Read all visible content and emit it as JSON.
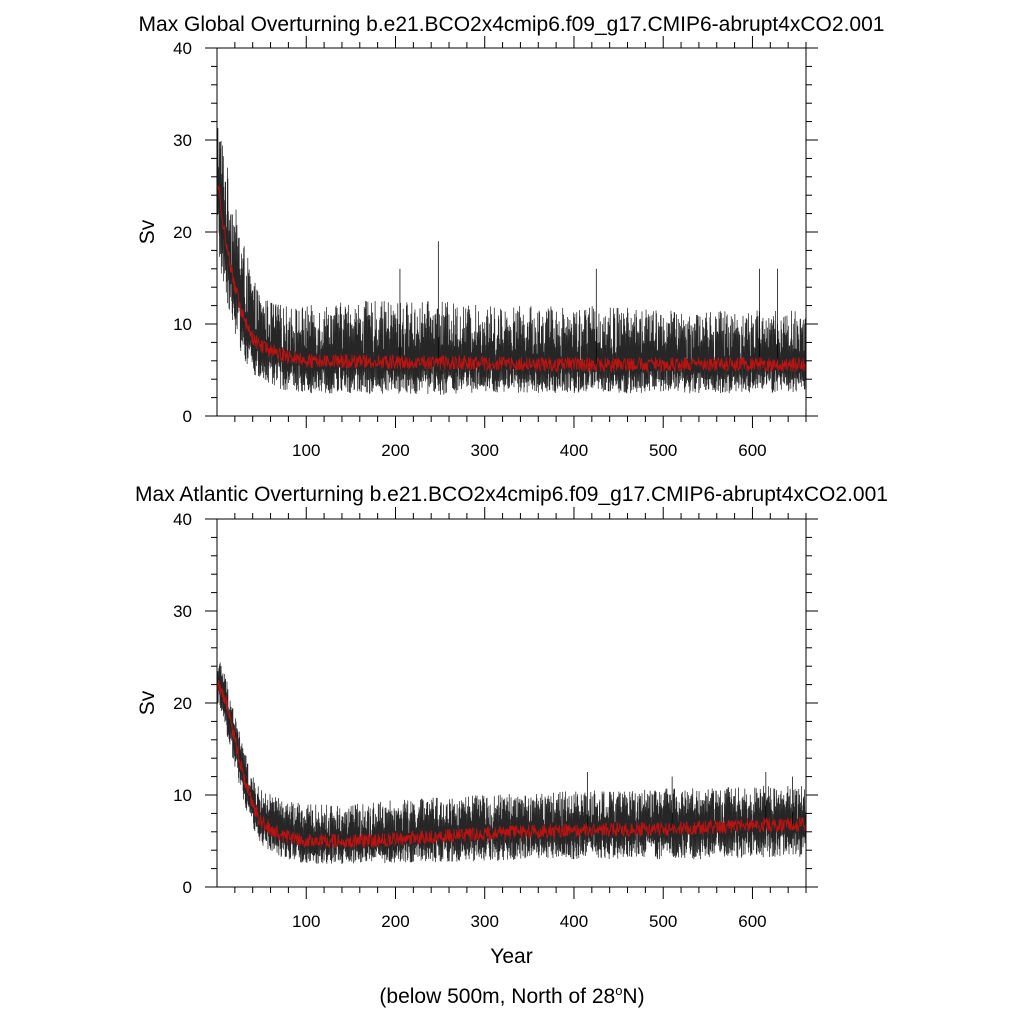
{
  "chart_data": [
    {
      "type": "line",
      "title": "Max Global Overturning b.e21.BCO2x4cmip6.f09_g17.CMIP6-abrupt4xCO2.001",
      "xlabel": "",
      "ylabel": "Sv",
      "xlim": [
        0,
        660
      ],
      "ylim": [
        0,
        40
      ],
      "x_ticks": [
        100,
        200,
        300,
        400,
        500,
        600
      ],
      "x_tick_labels": [
        "100",
        "200",
        "300",
        "400",
        "500",
        "600"
      ],
      "y_ticks": [
        0,
        10,
        20,
        30,
        40
      ],
      "y_tick_labels": [
        "0",
        "10",
        "20",
        "30",
        "40"
      ],
      "series": [
        {
          "name": "spread",
          "color": "#000000",
          "x": [
            0,
            5,
            10,
            20,
            30,
            40,
            50,
            75,
            100,
            150,
            200,
            250,
            300,
            350,
            400,
            450,
            500,
            550,
            600,
            660
          ],
          "low": [
            17,
            15,
            13,
            9,
            6,
            4.5,
            3.5,
            2.8,
            2.5,
            2.4,
            2.4,
            2.3,
            2.4,
            2.5,
            2.5,
            2.4,
            2.5,
            2.4,
            2.5,
            2.5
          ],
          "high": [
            33,
            31,
            28,
            23,
            19,
            15,
            13,
            12,
            12,
            12.5,
            12.5,
            12.5,
            12,
            12,
            12,
            12,
            11.5,
            11.5,
            11.5,
            11.5
          ],
          "peaks": [
            {
              "x": 248,
              "y": 19
            },
            {
              "x": 205,
              "y": 16
            },
            {
              "x": 425,
              "y": 16
            },
            {
              "x": 608,
              "y": 16
            },
            {
              "x": 628,
              "y": 16
            }
          ]
        },
        {
          "name": "mean",
          "color": "#cc1111",
          "x": [
            0,
            5,
            10,
            20,
            30,
            40,
            50,
            75,
            100,
            150,
            200,
            250,
            300,
            350,
            400,
            450,
            500,
            550,
            600,
            660
          ],
          "y": [
            26,
            22,
            19,
            14,
            10.5,
            8.5,
            7.5,
            6.5,
            6,
            6,
            5.8,
            5.8,
            5.7,
            5.6,
            5.6,
            5.6,
            5.6,
            5.6,
            5.6,
            5.6
          ]
        }
      ]
    },
    {
      "type": "line",
      "title": "Max Atlantic Overturning b.e21.BCO2x4cmip6.f09_g17.CMIP6-abrupt4xCO2.001",
      "xlabel": "Year",
      "ylabel": "Sv",
      "xlim": [
        0,
        660
      ],
      "ylim": [
        0,
        40
      ],
      "x_ticks": [
        100,
        200,
        300,
        400,
        500,
        600
      ],
      "x_tick_labels": [
        "100",
        "200",
        "300",
        "400",
        "500",
        "600"
      ],
      "y_ticks": [
        0,
        10,
        20,
        30,
        40
      ],
      "y_tick_labels": [
        "0",
        "10",
        "20",
        "30",
        "40"
      ],
      "series": [
        {
          "name": "spread",
          "color": "#000000",
          "x": [
            0,
            5,
            10,
            20,
            30,
            40,
            50,
            75,
            100,
            150,
            200,
            250,
            300,
            350,
            400,
            450,
            500,
            550,
            600,
            660
          ],
          "low": [
            20,
            19,
            17,
            13,
            9,
            6.5,
            4.5,
            3,
            2.5,
            2.5,
            2.6,
            2.7,
            2.8,
            3,
            3,
            3,
            3,
            3,
            3.2,
            3.3
          ],
          "high": [
            25,
            24.5,
            23,
            19,
            15,
            12,
            10.5,
            9.5,
            9,
            9,
            9.5,
            9.8,
            10,
            10.2,
            10.5,
            10.5,
            10.7,
            10.8,
            11,
            11
          ],
          "peaks": [
            {
              "x": 415,
              "y": 12.5
            },
            {
              "x": 510,
              "y": 12
            },
            {
              "x": 615,
              "y": 12.5
            },
            {
              "x": 645,
              "y": 12
            }
          ]
        },
        {
          "name": "mean",
          "color": "#cc1111",
          "x": [
            0,
            5,
            10,
            20,
            30,
            40,
            50,
            75,
            100,
            150,
            200,
            250,
            300,
            350,
            400,
            450,
            500,
            550,
            600,
            660
          ],
          "y": [
            22,
            21.5,
            20,
            16,
            12,
            9,
            7,
            5.5,
            5,
            5,
            5.2,
            5.5,
            5.8,
            6,
            6.2,
            6.3,
            6.3,
            6.5,
            6.7,
            6.8
          ]
        }
      ]
    }
  ],
  "footer": {
    "prefix": "(below 500m, North of 28",
    "degree": "o",
    "suffix": "N)"
  }
}
